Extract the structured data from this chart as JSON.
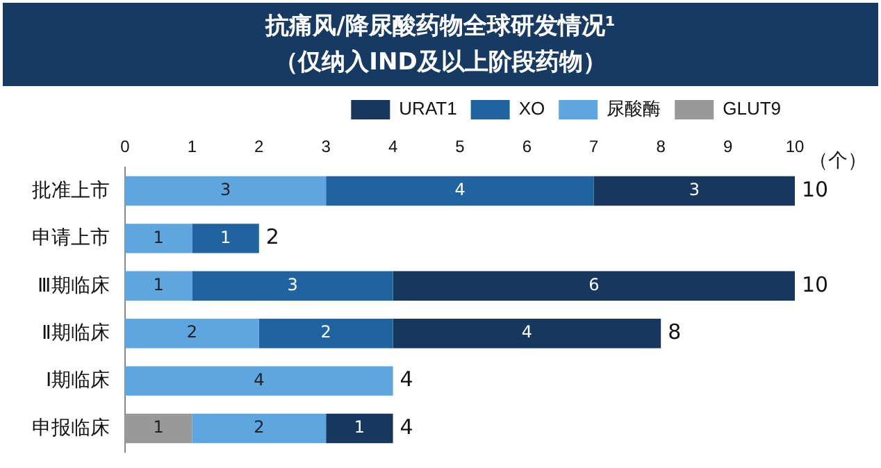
{
  "chart_data": {
    "type": "bar",
    "orientation": "horizontal",
    "stacked": true,
    "title": "抗痛风/降尿酸药物全球研发情况¹",
    "subtitle": "（仅纳入IND及以上阶段药物）",
    "categories": [
      "批准上市",
      "申请上市",
      "Ⅲ期临床",
      "Ⅱ期临床",
      "Ⅰ期临床",
      "申报临床"
    ],
    "series": [
      {
        "name": "GLUT9",
        "color": "#999999",
        "values": [
          null,
          null,
          null,
          null,
          null,
          1
        ]
      },
      {
        "name": "尿酸酶",
        "color": "#5ea6df",
        "values": [
          3,
          1,
          1,
          2,
          4,
          2
        ]
      },
      {
        "name": "XO",
        "color": "#1f64a0",
        "values": [
          4,
          1,
          3,
          2,
          null,
          null
        ]
      },
      {
        "name": "URAT1",
        "color": "#17375e",
        "values": [
          3,
          null,
          6,
          4,
          null,
          1
        ]
      }
    ],
    "xlim": [
      0,
      10
    ],
    "xticks": [
      0,
      1,
      2,
      3,
      4,
      5,
      6,
      7,
      8,
      9,
      10
    ],
    "grid": false,
    "legend": "top right",
    "data_labels": true,
    "totals": [
      "10",
      "2",
      "10",
      "8",
      "4",
      "4"
    ],
    "annotations": [
      "（个）"
    ]
  }
}
